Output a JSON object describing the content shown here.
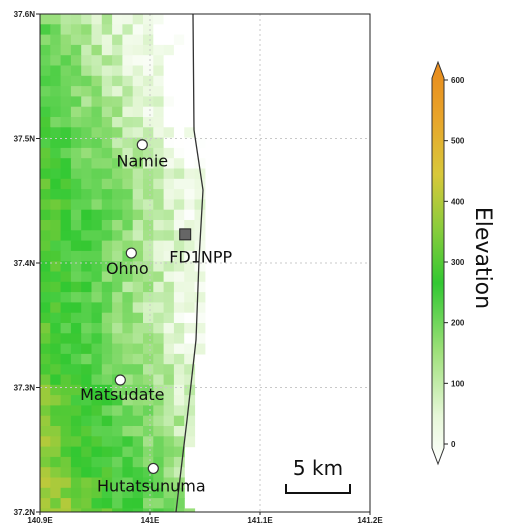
{
  "map": {
    "lat_ticks": [
      "37.6N",
      "37.5N",
      "37.4N",
      "37.3N",
      "37.2N"
    ],
    "lon_ticks": [
      "140.9E",
      "141E",
      "141.1E",
      "141.2E"
    ],
    "places": [
      {
        "name": "Namie",
        "lon": 140.993,
        "lat": 37.495,
        "marker": "circle"
      },
      {
        "name": "FD1NPP",
        "lon": 141.032,
        "lat": 37.423,
        "marker": "square"
      },
      {
        "name": "Ohno",
        "lon": 140.983,
        "lat": 37.408,
        "marker": "circle"
      },
      {
        "name": "Matsudate",
        "lon": 140.973,
        "lat": 37.306,
        "marker": "circle"
      },
      {
        "name": "Hutatsunuma",
        "lon": 141.003,
        "lat": 37.235,
        "marker": "circle"
      }
    ],
    "scale_bar": {
      "label": "5 km"
    },
    "colorbar": {
      "title": "Elevation",
      "ticks": [
        "0",
        "100",
        "200",
        "300",
        "400",
        "500",
        "600"
      ],
      "min": 0,
      "max": 600
    },
    "colors": {
      "low": "#ffffff",
      "mid": "#2ecc2e",
      "high": "#e8961e",
      "sea": "#ffffff",
      "grid": "#c8c8c8"
    }
  }
}
